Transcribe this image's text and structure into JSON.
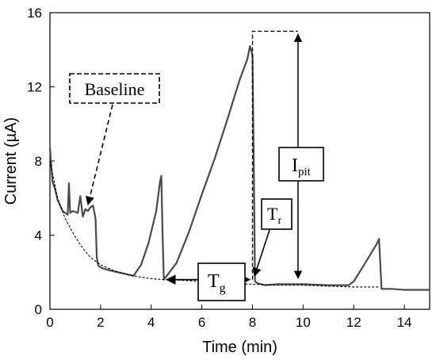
{
  "chart_data": {
    "type": "line",
    "xlabel": "Time (min)",
    "ylabel": "Current (µA)",
    "xlim": [
      0,
      15
    ],
    "ylim": [
      0,
      16
    ],
    "x_ticks": [
      0,
      2,
      4,
      6,
      8,
      10,
      12,
      14
    ],
    "y_ticks": [
      0,
      4,
      8,
      12,
      16
    ],
    "grid": false,
    "series": [
      {
        "style": "solid",
        "color": "#4a4a4a",
        "x": [
          0.0,
          0.1,
          0.2,
          0.3,
          0.5,
          0.7,
          0.75,
          0.8,
          0.9,
          1.1,
          1.2,
          1.3,
          1.4,
          1.5,
          1.6,
          1.7,
          1.8,
          1.85,
          1.9,
          1.95,
          2.1,
          2.5,
          3.0,
          3.3,
          3.6,
          3.9,
          4.2,
          4.35,
          4.4,
          4.45,
          4.5,
          5.0,
          5.5,
          6.0,
          6.5,
          7.0,
          7.5,
          7.8,
          7.9,
          8.0,
          8.05,
          8.1,
          8.2,
          8.5,
          9.0,
          10.0,
          11.0,
          11.8,
          12.0,
          12.5,
          12.9,
          13.0,
          13.05,
          13.1,
          13.5,
          14.0,
          14.5,
          15.0
        ],
        "y": [
          8.7,
          6.9,
          6.5,
          5.9,
          5.3,
          5.1,
          6.8,
          5.2,
          5.3,
          5.2,
          6.1,
          5.0,
          5.4,
          5.3,
          5.5,
          5.6,
          4.9,
          2.8,
          2.4,
          2.3,
          2.2,
          2.05,
          1.9,
          1.8,
          2.4,
          3.6,
          5.3,
          6.9,
          7.2,
          4.0,
          1.6,
          2.5,
          4.2,
          6.2,
          8.1,
          10.2,
          12.4,
          13.5,
          14.2,
          13.7,
          8.0,
          1.5,
          1.4,
          1.3,
          1.35,
          1.35,
          1.3,
          1.3,
          1.5,
          2.6,
          3.5,
          3.8,
          2.5,
          1.1,
          1.1,
          1.05,
          1.05,
          1.05
        ]
      },
      {
        "style": "dashed",
        "color": "#000000",
        "x": [
          0.0,
          0.3,
          0.6,
          1.0,
          1.3,
          1.6,
          2.0,
          2.5,
          3.0,
          3.5,
          4.0,
          4.5,
          5.0,
          6.0,
          7.0,
          8.0,
          9.0,
          10.0,
          11.0,
          12.0,
          13.0
        ],
        "y": [
          8.0,
          6.0,
          4.9,
          3.9,
          3.3,
          2.8,
          2.4,
          2.1,
          1.9,
          1.75,
          1.65,
          1.6,
          1.58,
          1.5,
          1.4,
          1.35,
          1.3,
          1.3,
          1.25,
          1.2,
          1.2
        ]
      }
    ],
    "annotations": {
      "baseline": "Baseline",
      "ipit": {
        "main": "I",
        "sub": "pit"
      },
      "tr": {
        "main": "T",
        "sub": "r"
      },
      "tg": {
        "main": "T",
        "sub": "g"
      },
      "ipit_top": 15.0,
      "ipit_bottom": 1.55,
      "pit_x0": 7.95,
      "pit_x1": 9.8,
      "pit_peak": 15.0,
      "tg_x0": 4.55,
      "tg_x1": 7.95,
      "tg_y": 1.6
    }
  }
}
